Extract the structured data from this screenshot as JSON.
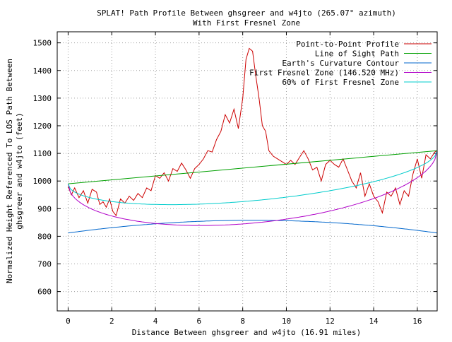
{
  "chart_data": {
    "type": "line",
    "title": "SPLAT! Path Profile Between ghsgreer and w4jto (265.07° azimuth)",
    "subtitle": "With First Fresnel Zone",
    "xlabel": "Distance Between ghsgreer and w4jto (16.91 miles)",
    "ylabel_line1": "Normalized Height Referenced To LOS Path Between",
    "ylabel_line2": "ghsgreer and w4jto (feet)",
    "xlim": [
      -0.5,
      16.91
    ],
    "ylim": [
      530,
      1540
    ],
    "x_ticks": [
      0,
      2,
      4,
      6,
      8,
      10,
      12,
      14,
      16
    ],
    "y_ticks": [
      600,
      700,
      800,
      900,
      1000,
      1100,
      1200,
      1300,
      1400,
      1500
    ],
    "grid": true,
    "legend_position": "top-right",
    "series": [
      {
        "name": "Point-to-Point Profile",
        "color": "#cc0000",
        "x": [
          0,
          0.15,
          0.3,
          0.5,
          0.7,
          0.9,
          1.1,
          1.3,
          1.45,
          1.6,
          1.75,
          1.9,
          2.05,
          2.2,
          2.4,
          2.6,
          2.8,
          3.0,
          3.2,
          3.4,
          3.6,
          3.8,
          4.0,
          4.2,
          4.4,
          4.6,
          4.8,
          5.0,
          5.2,
          5.4,
          5.6,
          5.8,
          6.0,
          6.2,
          6.4,
          6.6,
          6.8,
          7.0,
          7.2,
          7.4,
          7.6,
          7.8,
          8.0,
          8.15,
          8.3,
          8.45,
          8.6,
          8.75,
          8.9,
          9.05,
          9.2,
          9.4,
          9.6,
          9.8,
          10.0,
          10.2,
          10.4,
          10.6,
          10.8,
          11.0,
          11.2,
          11.4,
          11.6,
          11.8,
          12.0,
          12.2,
          12.4,
          12.6,
          12.8,
          13.0,
          13.2,
          13.4,
          13.6,
          13.8,
          14.0,
          14.2,
          14.4,
          14.6,
          14.8,
          15.0,
          15.2,
          15.4,
          15.6,
          15.8,
          16.0,
          16.2,
          16.4,
          16.6,
          16.8,
          16.91
        ],
        "values": [
          980,
          950,
          975,
          940,
          965,
          920,
          970,
          960,
          915,
          925,
          905,
          935,
          890,
          875,
          935,
          920,
          945,
          930,
          955,
          940,
          975,
          965,
          1020,
          1010,
          1030,
          1000,
          1045,
          1035,
          1065,
          1040,
          1010,
          1045,
          1060,
          1080,
          1110,
          1105,
          1150,
          1180,
          1240,
          1210,
          1260,
          1190,
          1300,
          1440,
          1480,
          1470,
          1380,
          1300,
          1200,
          1180,
          1110,
          1090,
          1080,
          1070,
          1060,
          1075,
          1060,
          1085,
          1110,
          1080,
          1040,
          1050,
          1000,
          1060,
          1075,
          1060,
          1050,
          1080,
          1040,
          1000,
          975,
          1030,
          945,
          990,
          945,
          925,
          885,
          960,
          945,
          975,
          915,
          965,
          945,
          1025,
          1080,
          1010,
          1095,
          1080,
          1105,
          1110
        ]
      },
      {
        "name": "Line of Sight Path",
        "color": "#00a000",
        "x": [
          0,
          16.91
        ],
        "values": [
          990,
          1110
        ]
      },
      {
        "name": "Earth's Curvature Contour",
        "color": "#0066cc"
      },
      {
        "name": "First Fresnel Zone (146.520 MHz)",
        "color": "#b000c8"
      },
      {
        "name": "60% of First Fresnel Zone",
        "color": "#00cccc"
      }
    ]
  }
}
